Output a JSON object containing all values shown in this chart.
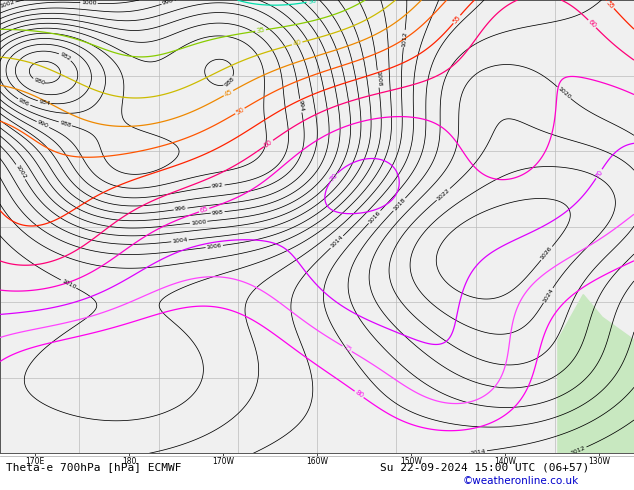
{
  "title_bottom": "Theta-e 700hPa [hPa] ECMWF",
  "title_date": "Su 22-09-2024 15:00 UTC (06+57)",
  "copyright": "©weatheronline.co.uk",
  "figsize": [
    6.34,
    4.9
  ],
  "dpi": 100,
  "map_bg": "#f0f0f0",
  "land_color": "#c8e8c0",
  "border_color": "#888888",
  "bottom_bar_color": "#ffffff",
  "bottom_text_color": "#000000",
  "copyright_color": "#0000cc",
  "title_fontsize": 8.0,
  "copyright_fontsize": 7.5,
  "grid_color": "#bbbbbb",
  "pressure_color": "#000000",
  "theta_colors_by_value": {
    "15": "#0000cc",
    "20": "#0044ff",
    "25": "#00aaff",
    "30": "#00cccc",
    "35": "#66cc00",
    "40": "#aacc00",
    "45": "#ddaa00",
    "50": "#ff8800",
    "55": "#ff4400",
    "60": "#ff0088",
    "65": "#ff00cc",
    "70": "#cc00ff",
    "75": "#ff00ff",
    "80": "#ff00aa"
  }
}
